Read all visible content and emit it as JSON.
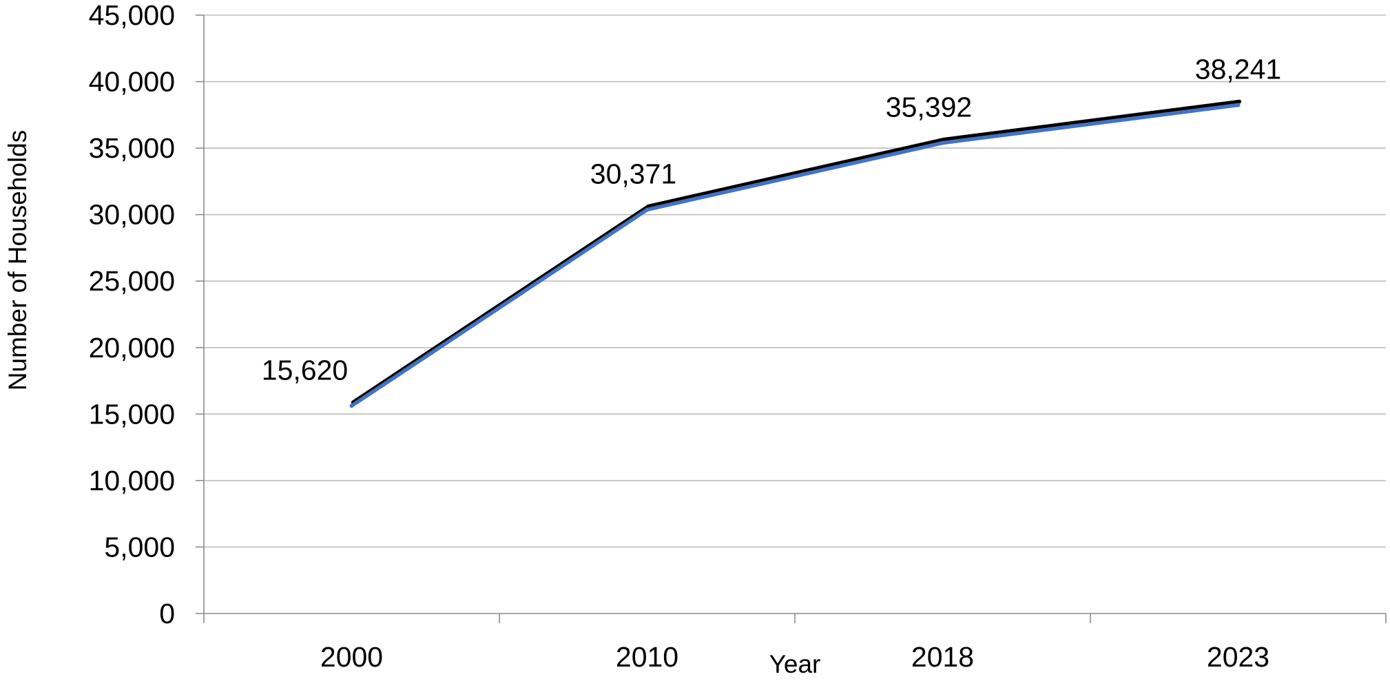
{
  "chart_data": {
    "type": "line",
    "title": "",
    "xlabel": "Year",
    "ylabel": "Number of Households",
    "categories": [
      "2000",
      "2010",
      "2018",
      "2023"
    ],
    "series": [
      {
        "values": [
          15620,
          30371,
          35392,
          38241
        ],
        "color": "#4472c4",
        "shadow_color": "#000000"
      }
    ],
    "data_labels": [
      "15,620",
      "30,371",
      "35,392",
      "38,241"
    ],
    "ylim": [
      0,
      45000
    ],
    "y_ticks": [
      0,
      5000,
      10000,
      15000,
      20000,
      25000,
      30000,
      35000,
      40000,
      45000
    ],
    "y_tick_labels": [
      "0",
      "5,000",
      "10,000",
      "15,000",
      "20,000",
      "25,000",
      "30,000",
      "35,000",
      "40,000",
      "45,000"
    ],
    "grid": true,
    "legend": "none"
  }
}
